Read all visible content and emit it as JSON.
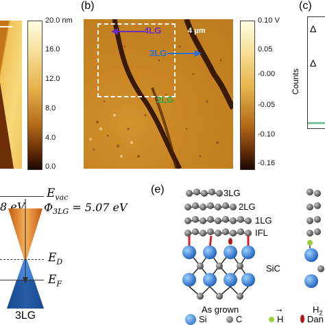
{
  "panel_a": {
    "colorbar_ticks": [
      "20.0 nm",
      "16.0",
      "12.0",
      "8.0",
      "4.0",
      "0.0"
    ]
  },
  "panel_b": {
    "label": "(b)",
    "scale_bar": "4 μm",
    "region_4lg": "4LG",
    "region_3lg": "3LG",
    "region_2lg": "2LG",
    "colorbar_ticks": [
      "0.10 V",
      "0.05",
      "-0.00",
      "-0.05",
      "-0.10",
      "-0.16"
    ],
    "colors": {
      "4lg": "#6a2fbf",
      "3lg": "#2f6fd0",
      "2lg": "#2aa64a"
    }
  },
  "panel_c": {
    "label": "(c)",
    "ylabel": "Counts",
    "annot_1": "Δ",
    "annot_2": "Δ"
  },
  "panel_d": {
    "evac": "E",
    "evac_sub": "vac",
    "phi_left": "8 eV",
    "phi_right": "Φ",
    "phi_right_sub": "3LG",
    "phi_right_val": " = 5.07 eV",
    "ed": "E",
    "ed_sub": "D",
    "ef": "E",
    "ef_sub": "F",
    "bottom_label": "3LG"
  },
  "panel_e": {
    "label": "(e)",
    "layers": [
      "3LG",
      "2LG",
      "1LG",
      "IFL"
    ],
    "substrate": "SiC",
    "as_grown": "As grown",
    "arrow": "→",
    "h2": "H",
    "h2_sub": "2",
    "legend": {
      "si": "Si",
      "c": "C",
      "h": "H",
      "dangling": "Dan"
    }
  }
}
